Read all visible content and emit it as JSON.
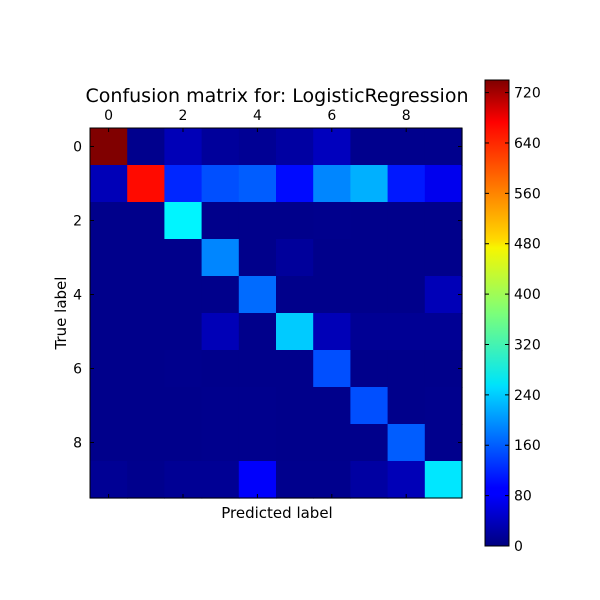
{
  "chart_data": {
    "type": "heatmap",
    "title": "Confusion matrix for: LogisticRegression",
    "xlabel": "Predicted label",
    "ylabel": "True label",
    "x_ticks": [
      "0",
      "2",
      "4",
      "6",
      "8"
    ],
    "y_ticks": [
      "0",
      "2",
      "4",
      "6",
      "8"
    ],
    "colorbar_ticks": [
      "0",
      "80",
      "160",
      "240",
      "320",
      "400",
      "480",
      "560",
      "640",
      "720"
    ],
    "colorbar_range": [
      0,
      740
    ],
    "colormap": "jet",
    "matrix": [
      [
        740,
        10,
        40,
        20,
        15,
        25,
        45,
        10,
        10,
        10
      ],
      [
        40,
        640,
        120,
        150,
        160,
        100,
        190,
        220,
        110,
        80
      ],
      [
        8,
        8,
        270,
        8,
        8,
        8,
        10,
        8,
        8,
        8
      ],
      [
        8,
        8,
        8,
        190,
        8,
        20,
        8,
        8,
        8,
        8
      ],
      [
        8,
        8,
        8,
        8,
        170,
        8,
        8,
        8,
        8,
        40
      ],
      [
        8,
        8,
        8,
        40,
        8,
        240,
        40,
        15,
        15,
        15
      ],
      [
        8,
        8,
        10,
        8,
        8,
        8,
        150,
        8,
        8,
        8
      ],
      [
        8,
        8,
        8,
        10,
        10,
        8,
        8,
        150,
        8,
        10
      ],
      [
        8,
        8,
        8,
        10,
        10,
        8,
        8,
        8,
        160,
        10
      ],
      [
        15,
        10,
        15,
        15,
        90,
        10,
        10,
        25,
        40,
        260
      ]
    ]
  }
}
